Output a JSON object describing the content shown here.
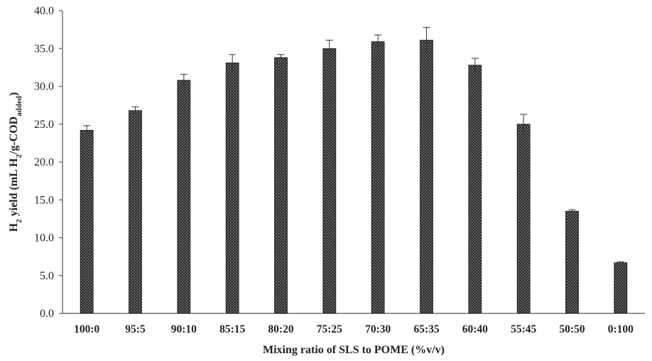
{
  "chart_data": {
    "type": "bar",
    "title": "",
    "xlabel": "Mixing ratio of SLS to POME  (%v/v)",
    "ylabel": {
      "parts": [
        {
          "text": "H",
          "sub": false
        },
        {
          "text": "2",
          "sub": true
        },
        {
          "text": " yield (mL H",
          "sub": false
        },
        {
          "text": "2",
          "sub": true
        },
        {
          "text": "/g-COD",
          "sub": false
        },
        {
          "text": "added",
          "sub": true
        },
        {
          "text": ")",
          "sub": false
        }
      ]
    },
    "ylim": [
      0,
      40
    ],
    "ytick_labels": [
      "0.0",
      "5.0",
      "10.0",
      "15.0",
      "20.0",
      "25.0",
      "30.0",
      "35.0",
      "40.0"
    ],
    "categories": [
      "100:0",
      "95:5",
      "90:10",
      "85:15",
      "80:20",
      "75:25",
      "70:30",
      "65:35",
      "60:40",
      "55:45",
      "50:50",
      "0:100"
    ],
    "values": [
      24.2,
      26.8,
      30.8,
      33.1,
      33.8,
      35.0,
      35.9,
      36.1,
      32.8,
      25.0,
      13.5,
      6.7
    ],
    "errors": [
      0.6,
      0.5,
      0.8,
      1.1,
      0.4,
      1.1,
      0.9,
      1.7,
      0.9,
      1.3,
      0.2,
      0.1
    ],
    "grid": false,
    "legend": "none",
    "bar_color": "#2a2a2a",
    "bar_pattern": "crosshatch"
  }
}
